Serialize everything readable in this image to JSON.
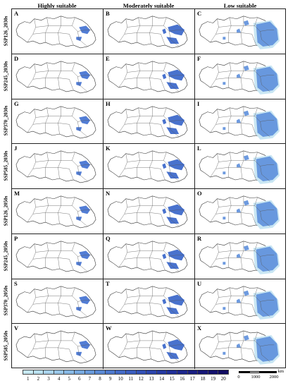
{
  "columns": [
    "Highly suitable",
    "Moderately suitable",
    "Low suitable"
  ],
  "rows": [
    {
      "label": "SSP126_2030s",
      "letters": [
        "A",
        "B",
        "C"
      ]
    },
    {
      "label": "SSP245_2030s",
      "letters": [
        "D",
        "E",
        "F"
      ]
    },
    {
      "label": "SSP370_2030s",
      "letters": [
        "G",
        "H",
        "I"
      ]
    },
    {
      "label": "SSP585_2030s",
      "letters": [
        "J",
        "K",
        "L"
      ]
    },
    {
      "label": "SSP126_2050s",
      "letters": [
        "M",
        "N",
        "O"
      ]
    },
    {
      "label": "SSP245_2050s",
      "letters": [
        "P",
        "Q",
        "R"
      ]
    },
    {
      "label": "SSP370_2050s",
      "letters": [
        "S",
        "T",
        "U"
      ]
    },
    {
      "label": "SSP585_2050s",
      "letters": [
        "V",
        "W",
        "X"
      ]
    }
  ],
  "legend": {
    "labels": [
      "1",
      "2",
      "3",
      "4",
      "5",
      "6",
      "7",
      "8",
      "9",
      "10",
      "11",
      "12",
      "13",
      "14",
      "15",
      "16",
      "17",
      "18",
      "19",
      "20"
    ],
    "colors": [
      "#c6e8f2",
      "#b9e0ef",
      "#a9d3ec",
      "#98c6e8",
      "#87b8e4",
      "#77a9df",
      "#6899da",
      "#5a89d4",
      "#4d79cd",
      "#426ac6",
      "#395cbe",
      "#314fb5",
      "#2a43ab",
      "#2438a1",
      "#1f2e97",
      "#1b258c",
      "#181d82",
      "#151677",
      "#12106d",
      "#100b62"
    ]
  },
  "scale": {
    "labels": [
      "0",
      "1000",
      "2000"
    ],
    "unit": "km"
  }
}
